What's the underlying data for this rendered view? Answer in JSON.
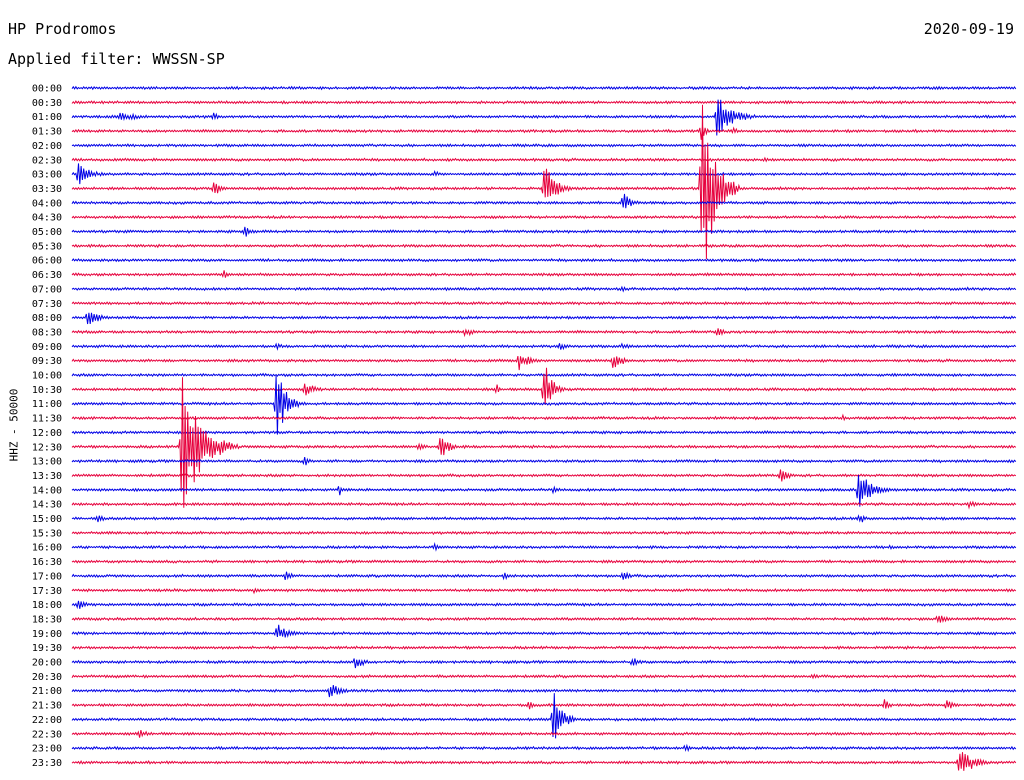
{
  "header": {
    "station": "HP Prodromos",
    "filter": "Applied filter: WWSSN-SP",
    "date": "2020-09-19"
  },
  "channel_label": "HHZ - 50000",
  "colors": {
    "even": "#0000e6",
    "odd": "#e6003c",
    "text": "#000000"
  },
  "chart_data": {
    "type": "line",
    "title": "HP Prodromos",
    "subtitle": "Applied filter: WWSSN-SP",
    "ylabel": "HHZ - 50000",
    "row_labels": [
      "00:00",
      "00:30",
      "01:00",
      "01:30",
      "02:00",
      "02:30",
      "03:00",
      "03:30",
      "04:00",
      "04:30",
      "05:00",
      "05:30",
      "06:00",
      "06:30",
      "07:00",
      "07:30",
      "08:00",
      "08:30",
      "09:00",
      "09:30",
      "10:00",
      "10:30",
      "11:00",
      "11:30",
      "12:00",
      "12:30",
      "13:00",
      "13:30",
      "14:00",
      "14:30",
      "15:00",
      "15:30",
      "16:00",
      "16:30",
      "17:00",
      "17:30",
      "18:00",
      "18:30",
      "19:00",
      "19:30",
      "20:00",
      "20:30",
      "21:00",
      "21:30",
      "22:00",
      "22:30",
      "23:00",
      "23:30"
    ],
    "row_minutes": 30,
    "events": [
      {
        "row": 0,
        "min": 23.5,
        "amp": 1,
        "dur": 0.5
      },
      {
        "row": 2,
        "min": 1.5,
        "amp": 5,
        "dur": 2
      },
      {
        "row": 2,
        "min": 4.5,
        "amp": 4,
        "dur": 0.6
      },
      {
        "row": 2,
        "min": 12.5,
        "amp": 2,
        "dur": 0.5
      },
      {
        "row": 2,
        "min": 20.5,
        "amp": 22,
        "dur": 1.5
      },
      {
        "row": 3,
        "min": 20,
        "amp": 10,
        "dur": 0.5
      },
      {
        "row": 3,
        "min": 21,
        "amp": 5,
        "dur": 0.4
      },
      {
        "row": 5,
        "min": 22,
        "amp": 4,
        "dur": 0.6
      },
      {
        "row": 6,
        "min": 0.2,
        "amp": 12,
        "dur": 1.2
      },
      {
        "row": 6,
        "min": 11.5,
        "amp": 3,
        "dur": 1
      },
      {
        "row": 7,
        "min": 4.5,
        "amp": 10,
        "dur": 0.6
      },
      {
        "row": 7,
        "min": 15,
        "amp": 28,
        "dur": 1
      },
      {
        "row": 7,
        "min": 20,
        "amp": 110,
        "dur": 1.2
      },
      {
        "row": 8,
        "min": 17.5,
        "amp": 12,
        "dur": 0.8
      },
      {
        "row": 10,
        "min": 5.5,
        "amp": 6,
        "dur": 0.8
      },
      {
        "row": 13,
        "min": 4.8,
        "amp": 5,
        "dur": 0.8
      },
      {
        "row": 14,
        "min": 17.5,
        "amp": 3,
        "dur": 0.5
      },
      {
        "row": 16,
        "min": 0.5,
        "amp": 10,
        "dur": 1
      },
      {
        "row": 17,
        "min": 12.5,
        "amp": 5,
        "dur": 0.8
      },
      {
        "row": 17,
        "min": 20.5,
        "amp": 6,
        "dur": 0.6
      },
      {
        "row": 18,
        "min": 6.5,
        "amp": 3,
        "dur": 0.8
      },
      {
        "row": 18,
        "min": 15.5,
        "amp": 4,
        "dur": 1
      },
      {
        "row": 18,
        "min": 17.5,
        "amp": 4,
        "dur": 0.6
      },
      {
        "row": 19,
        "min": 14.2,
        "amp": 10,
        "dur": 1
      },
      {
        "row": 19,
        "min": 17.2,
        "amp": 9,
        "dur": 1
      },
      {
        "row": 21,
        "min": 7.4,
        "amp": 8,
        "dur": 1
      },
      {
        "row": 21,
        "min": 13.5,
        "amp": 6,
        "dur": 0.3
      },
      {
        "row": 21,
        "min": 15,
        "amp": 33,
        "dur": 0.7
      },
      {
        "row": 22,
        "min": 6.5,
        "amp": 38,
        "dur": 0.9
      },
      {
        "row": 23,
        "min": 24.5,
        "amp": 5,
        "dur": 0.3
      },
      {
        "row": 25,
        "min": 3.5,
        "amp": 75,
        "dur": 1.8
      },
      {
        "row": 25,
        "min": 11,
        "amp": 4,
        "dur": 0.8
      },
      {
        "row": 25,
        "min": 11.7,
        "amp": 15,
        "dur": 0.8
      },
      {
        "row": 26,
        "min": 7.4,
        "amp": 6,
        "dur": 0.4
      },
      {
        "row": 27,
        "min": 22.5,
        "amp": 9,
        "dur": 0.7
      },
      {
        "row": 28,
        "min": 8.5,
        "amp": 6,
        "dur": 0.4
      },
      {
        "row": 28,
        "min": 15.3,
        "amp": 4,
        "dur": 0.6
      },
      {
        "row": 28,
        "min": 25,
        "amp": 22,
        "dur": 1.2
      },
      {
        "row": 29,
        "min": 28.5,
        "amp": 5,
        "dur": 0.6
      },
      {
        "row": 30,
        "min": 0.8,
        "amp": 4,
        "dur": 0.8
      },
      {
        "row": 30,
        "min": 25,
        "amp": 8,
        "dur": 0.6
      },
      {
        "row": 32,
        "min": 11.5,
        "amp": 4,
        "dur": 0.6
      },
      {
        "row": 32,
        "min": 26,
        "amp": 3,
        "dur": 0.4
      },
      {
        "row": 34,
        "min": 6.8,
        "amp": 6,
        "dur": 0.6
      },
      {
        "row": 34,
        "min": 13.7,
        "amp": 4,
        "dur": 0.8
      },
      {
        "row": 34,
        "min": 17.5,
        "amp": 8,
        "dur": 0.5
      },
      {
        "row": 35,
        "min": 5.8,
        "amp": 4,
        "dur": 0.8
      },
      {
        "row": 36,
        "min": 0.2,
        "amp": 6,
        "dur": 0.8
      },
      {
        "row": 37,
        "min": 27.5,
        "amp": 6,
        "dur": 0.8
      },
      {
        "row": 38,
        "min": 6.5,
        "amp": 11,
        "dur": 1
      },
      {
        "row": 40,
        "min": 9,
        "amp": 7,
        "dur": 0.9
      },
      {
        "row": 40,
        "min": 17.8,
        "amp": 5,
        "dur": 0.9
      },
      {
        "row": 41,
        "min": 23.5,
        "amp": 3,
        "dur": 0.8
      },
      {
        "row": 42,
        "min": 8.2,
        "amp": 9,
        "dur": 0.9
      },
      {
        "row": 43,
        "min": 14.5,
        "amp": 6,
        "dur": 0.6
      },
      {
        "row": 43,
        "min": 25.8,
        "amp": 7,
        "dur": 0.6
      },
      {
        "row": 43,
        "min": 27.8,
        "amp": 7,
        "dur": 0.6
      },
      {
        "row": 44,
        "min": 15.3,
        "amp": 35,
        "dur": 0.8
      },
      {
        "row": 45,
        "min": 2.1,
        "amp": 5,
        "dur": 1
      },
      {
        "row": 46,
        "min": 19.5,
        "amp": 5,
        "dur": 0.4
      },
      {
        "row": 47,
        "min": 28.2,
        "amp": 20,
        "dur": 1.1
      }
    ]
  }
}
